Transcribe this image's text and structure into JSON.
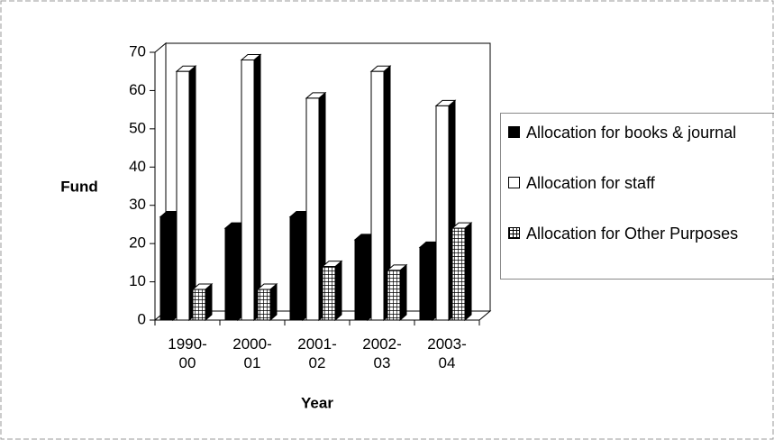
{
  "chart_data": {
    "type": "bar3d",
    "x_label": "Year",
    "y_label": "Fund",
    "categories": [
      "1990-00",
      "2000-01",
      "2001-02",
      "2002-03",
      "2003-04"
    ],
    "series": [
      {
        "name": "Allocation for books & journal",
        "color": "#000000",
        "values": [
          27,
          24,
          27,
          21,
          19
        ]
      },
      {
        "name": "Allocation for staff",
        "color": "#ffffff",
        "values": [
          65,
          68,
          58,
          65,
          56
        ]
      },
      {
        "name": "Allocation for Other Purposes",
        "color": "#ffffff",
        "pattern": "checkered",
        "values": [
          8,
          8,
          14,
          13,
          24
        ]
      }
    ],
    "ylim": [
      0,
      70
    ],
    "yticks": [
      0,
      10,
      20,
      30,
      40,
      50,
      60,
      70
    ],
    "legend": "right"
  }
}
